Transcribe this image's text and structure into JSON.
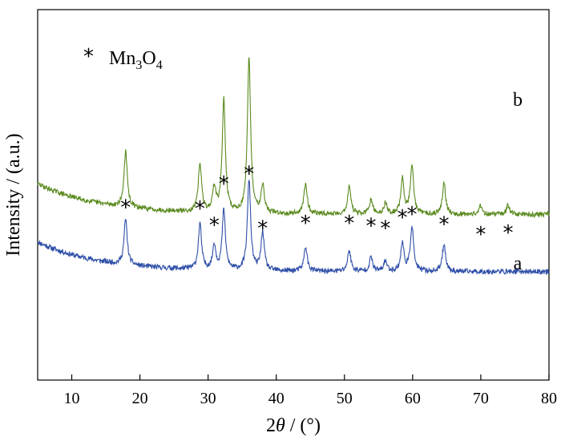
{
  "chart_data": {
    "type": "line",
    "xlabel_prefix": "2",
    "xlabel_var": "θ",
    "xlabel_suffix": " / (°)",
    "ylabel": "Intensity / (a.u.)",
    "xlim": [
      5,
      80
    ],
    "xticks": [
      "10",
      "20",
      "30",
      "40",
      "50",
      "60",
      "70",
      "80"
    ],
    "yticks_shown": false,
    "legend": {
      "marker": "*",
      "base": "Mn",
      "sub1": "3",
      "mid": "O",
      "sub2": "4"
    },
    "series": [
      {
        "name": "a",
        "color": "#2f4fa8",
        "baseline": 322,
        "offset": 88,
        "noise": 3.2,
        "seed": 11,
        "peaks": [
          [
            17.9,
            26
          ],
          [
            28.8,
            26
          ],
          [
            30.9,
            14
          ],
          [
            32.3,
            34
          ],
          [
            36.0,
            52
          ],
          [
            38.0,
            22
          ],
          [
            44.3,
            14
          ],
          [
            50.7,
            12
          ],
          [
            53.9,
            8
          ],
          [
            56.0,
            6
          ],
          [
            58.5,
            16
          ],
          [
            59.9,
            26
          ],
          [
            64.6,
            16
          ]
        ]
      },
      {
        "name": "b",
        "color": "#5a8a1e",
        "baseline": 492,
        "offset": 91,
        "noise": 3.0,
        "seed": 29,
        "peaks": [
          [
            17.9,
            32
          ],
          [
            28.8,
            28
          ],
          [
            30.9,
            14
          ],
          [
            32.3,
            64
          ],
          [
            36.0,
            88
          ],
          [
            38.0,
            16
          ],
          [
            44.3,
            18
          ],
          [
            50.7,
            16
          ],
          [
            53.9,
            8
          ],
          [
            56.0,
            6
          ],
          [
            58.5,
            20
          ],
          [
            59.9,
            28
          ],
          [
            64.6,
            18
          ],
          [
            70.0,
            5
          ],
          [
            74.0,
            5
          ]
        ]
      }
    ],
    "annotations": {
      "marker": "*",
      "positions": [
        [
          17.9,
          520
        ],
        [
          28.8,
          517
        ],
        [
          30.9,
          468
        ],
        [
          32.3,
          590
        ],
        [
          36.0,
          620
        ],
        [
          38.0,
          458
        ],
        [
          44.3,
          474
        ],
        [
          50.7,
          474
        ],
        [
          53.9,
          465
        ],
        [
          56.0,
          458
        ],
        [
          58.5,
          490
        ],
        [
          59.9,
          500
        ],
        [
          64.6,
          470
        ],
        [
          70.0,
          440
        ],
        [
          74.0,
          445
        ]
      ]
    }
  }
}
